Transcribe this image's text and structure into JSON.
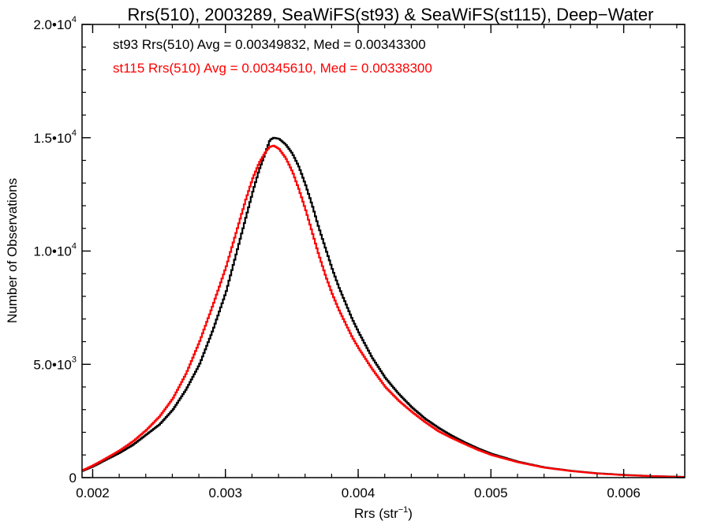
{
  "chart_data": {
    "type": "line",
    "title": "Rrs(510), 2003289, SeaWiFS(st93) & SeaWiFS(st115), Deep−Water",
    "xlabel": "Rrs (str",
    "xlabel_sup": "−1",
    "xlabel_tail": ")",
    "ylabel": "Number of Observations",
    "xlim": [
      0.00192,
      0.00646
    ],
    "ylim": [
      0,
      20000
    ],
    "x_ticks": [
      {
        "value": 0.002,
        "label": "0.002"
      },
      {
        "value": 0.003,
        "label": "0.003"
      },
      {
        "value": 0.004,
        "label": "0.004"
      },
      {
        "value": 0.005,
        "label": "0.005"
      },
      {
        "value": 0.006,
        "label": "0.006"
      }
    ],
    "y_ticks": [
      {
        "value": 0,
        "base": "0",
        "exp": ""
      },
      {
        "value": 5000,
        "base": "5.0•10",
        "exp": "3"
      },
      {
        "value": 10000,
        "base": "1.0•10",
        "exp": "4"
      },
      {
        "value": 15000,
        "base": "1.5•10",
        "exp": "4"
      },
      {
        "value": 20000,
        "base": "2.0•10",
        "exp": "4"
      }
    ],
    "grid": false,
    "legend_placement": "top-left",
    "series": [
      {
        "name": "st93",
        "color": "#000000",
        "annotation": "st93 Rrs(510) Avg = 0.00349832, Med = 0.00343300",
        "x": [
          0.00192,
          0.002,
          0.0021,
          0.0022,
          0.0023,
          0.0024,
          0.0025,
          0.0026,
          0.0027,
          0.0028,
          0.0029,
          0.003,
          0.00305,
          0.0031,
          0.00315,
          0.0032,
          0.00325,
          0.0033,
          0.00333,
          0.00336,
          0.0034,
          0.00345,
          0.0035,
          0.00355,
          0.0036,
          0.00365,
          0.0037,
          0.00375,
          0.0038,
          0.00385,
          0.0039,
          0.00395,
          0.004,
          0.0041,
          0.0042,
          0.0043,
          0.0044,
          0.0045,
          0.0046,
          0.0047,
          0.0048,
          0.0049,
          0.005,
          0.0052,
          0.0054,
          0.0056,
          0.0058,
          0.006,
          0.0062,
          0.00646
        ],
        "y": [
          300,
          500,
          800,
          1100,
          1450,
          1900,
          2350,
          3000,
          3900,
          5000,
          6500,
          8200,
          9300,
          10400,
          11500,
          12600,
          13600,
          14400,
          14900,
          15000,
          14950,
          14700,
          14300,
          13700,
          12900,
          12000,
          11000,
          10100,
          9200,
          8400,
          7700,
          7000,
          6400,
          5300,
          4400,
          3700,
          3100,
          2600,
          2200,
          1850,
          1550,
          1280,
          1050,
          700,
          450,
          300,
          190,
          120,
          70,
          30
        ]
      },
      {
        "name": "st115",
        "color": "#ff0000",
        "annotation": "st115 Rrs(510) Avg = 0.00345610, Med = 0.00338300",
        "x": [
          0.00192,
          0.002,
          0.0021,
          0.0022,
          0.0023,
          0.0024,
          0.0025,
          0.0026,
          0.0027,
          0.0028,
          0.0029,
          0.003,
          0.00305,
          0.0031,
          0.00315,
          0.0032,
          0.00325,
          0.0033,
          0.00333,
          0.00336,
          0.0034,
          0.00345,
          0.0035,
          0.00355,
          0.0036,
          0.00365,
          0.0037,
          0.00375,
          0.0038,
          0.00385,
          0.0039,
          0.00395,
          0.004,
          0.0041,
          0.0042,
          0.0043,
          0.0044,
          0.0045,
          0.0046,
          0.0047,
          0.0048,
          0.0049,
          0.005,
          0.0052,
          0.0054,
          0.0056,
          0.0058,
          0.006,
          0.0062,
          0.00646
        ],
        "y": [
          320,
          540,
          860,
          1200,
          1600,
          2100,
          2700,
          3500,
          4600,
          6000,
          7600,
          9300,
          10300,
          11300,
          12300,
          13200,
          13900,
          14400,
          14600,
          14650,
          14500,
          14100,
          13500,
          12700,
          11800,
          10800,
          9800,
          8900,
          8100,
          7400,
          6800,
          6200,
          5700,
          4800,
          4000,
          3400,
          2900,
          2450,
          2050,
          1750,
          1480,
          1220,
          1000,
          680,
          440,
          290,
          180,
          110,
          65,
          25
        ]
      }
    ]
  }
}
